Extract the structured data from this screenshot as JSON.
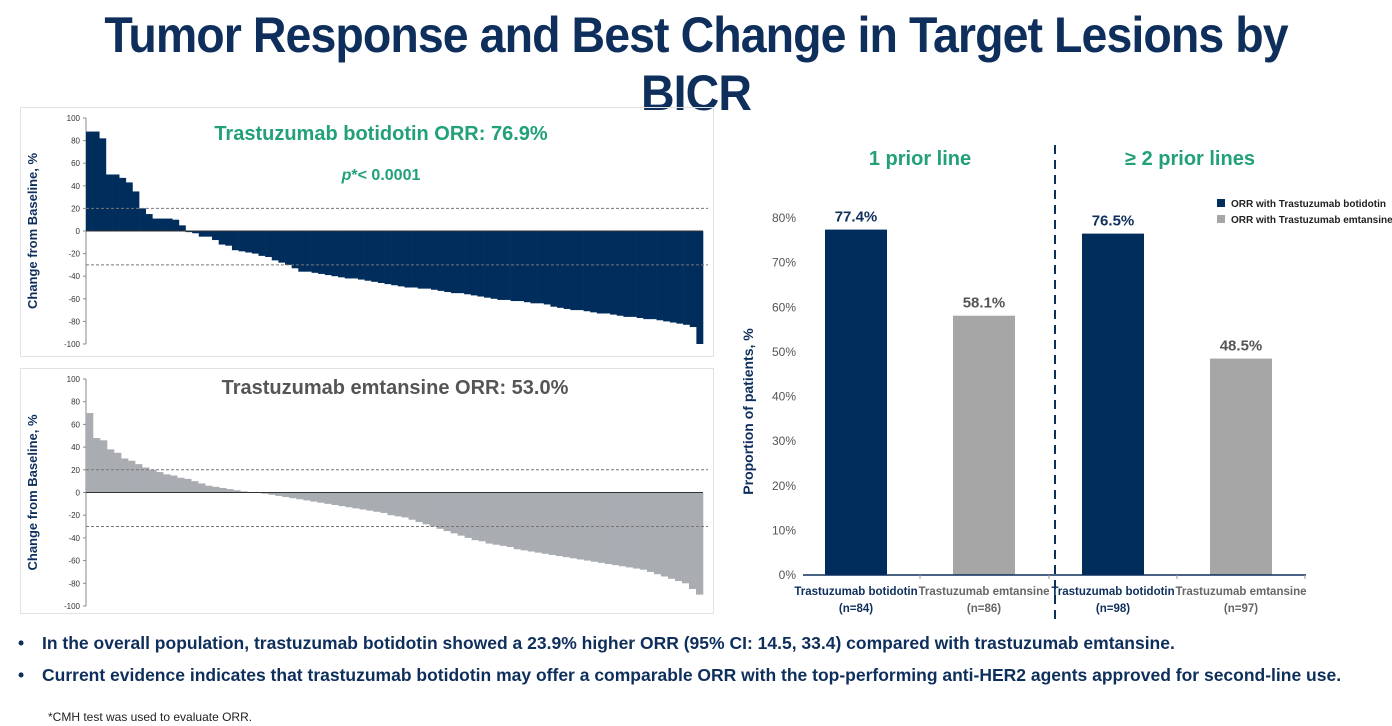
{
  "title": "Tumor Response and Best Change in Target Lesions by BICR",
  "colors": {
    "navy": "#0e2f5c",
    "bar_navy": "#002d5c",
    "gray": "#a6a6a6",
    "green": "#21a07a"
  },
  "chart_data": [
    {
      "type": "bar",
      "subtype": "waterfall",
      "title": "Trastuzumab botidotin ORR: 76.9%",
      "subtitle_p": "p",
      "subtitle_rest": "*< 0.0001",
      "ylabel": "Change from Baseline, %",
      "ylim": [
        -100,
        100
      ],
      "yticks": [
        "100",
        "80",
        "60",
        "40",
        "20",
        "0",
        "-20",
        "-40",
        "-60",
        "-80",
        "-100"
      ],
      "reference_lines": [
        20,
        -30
      ],
      "color": "#002d5c",
      "values": [
        88,
        88,
        82,
        50,
        50,
        47,
        43,
        35,
        20,
        15,
        11,
        11,
        11,
        10,
        5,
        -1,
        -2,
        -5,
        -5,
        -8,
        -12,
        -13,
        -17,
        -18,
        -19,
        -20,
        -22,
        -23,
        -26,
        -28,
        -30,
        -33,
        -36,
        -36,
        -37,
        -38,
        -39,
        -40,
        -41,
        -42,
        -42,
        -43,
        -44,
        -45,
        -46,
        -47,
        -48,
        -49,
        -50,
        -50,
        -51,
        -51,
        -52,
        -53,
        -54,
        -55,
        -55,
        -56,
        -57,
        -58,
        -59,
        -60,
        -61,
        -61,
        -62,
        -62,
        -63,
        -64,
        -64,
        -65,
        -67,
        -68,
        -69,
        -70,
        -70,
        -71,
        -72,
        -73,
        -73,
        -74,
        -75,
        -76,
        -76,
        -77,
        -78,
        -78,
        -79,
        -80,
        -81,
        -82,
        -83,
        -85,
        -100
      ]
    },
    {
      "type": "bar",
      "subtype": "waterfall",
      "title": "Trastuzumab emtansine ORR: 53.0%",
      "ylabel": "Change from Baseline, %",
      "ylim": [
        -100,
        100
      ],
      "yticks": [
        "100",
        "80",
        "60",
        "40",
        "20",
        "0",
        "-20",
        "-40",
        "-60",
        "-80",
        "-100"
      ],
      "reference_lines": [
        20,
        -30
      ],
      "color": "#a9adb2",
      "values": [
        70,
        48,
        46,
        38,
        35,
        30,
        28,
        25,
        22,
        20,
        18,
        16,
        15,
        13,
        12,
        10,
        8,
        6,
        5,
        4,
        3,
        2,
        1,
        0,
        0,
        -1,
        -2,
        -3,
        -4,
        -5,
        -6,
        -7,
        -8,
        -9,
        -10,
        -11,
        -12,
        -13,
        -14,
        -15,
        -16,
        -17,
        -18,
        -20,
        -21,
        -22,
        -24,
        -26,
        -28,
        -30,
        -32,
        -34,
        -36,
        -38,
        -40,
        -42,
        -43,
        -45,
        -46,
        -47,
        -48,
        -50,
        -51,
        -52,
        -53,
        -54,
        -55,
        -56,
        -57,
        -58,
        -59,
        -60,
        -61,
        -62,
        -63,
        -64,
        -65,
        -66,
        -67,
        -68,
        -70,
        -72,
        -74,
        -76,
        -78,
        -80,
        -85,
        -90
      ]
    },
    {
      "type": "bar",
      "ylabel": "Proportion of patients, %",
      "ylim": [
        0,
        80
      ],
      "yticks": [
        "0%",
        "10%",
        "20%",
        "30%",
        "40%",
        "50%",
        "60%",
        "70%",
        "80%"
      ],
      "groups": [
        "1 prior line",
        "≥ 2 prior lines"
      ],
      "legend": [
        "ORR with Trastuzumab botidotin",
        "ORR with Trastuzumab emtansine"
      ],
      "legend_position": "top-right",
      "bars": [
        {
          "name": "Trastuzumab botidotin",
          "n": "(n=84)",
          "value": 77.4,
          "label": "77.4%",
          "series": 0
        },
        {
          "name": "Trastuzumab emtansine",
          "n": "(n=86)",
          "value": 58.1,
          "label": "58.1%",
          "series": 1
        },
        {
          "name": "Trastuzumab botidotin",
          "n": "(n=98)",
          "value": 76.5,
          "label": "76.5%",
          "series": 0
        },
        {
          "name": "Trastuzumab emtansine",
          "n": "(n=97)",
          "value": 48.5,
          "label": "48.5%",
          "series": 1
        }
      ]
    }
  ],
  "bullets": [
    "In the overall population, trastuzumab botidotin showed a 23.9% higher ORR (95% CI: 14.5, 33.4) compared with trastuzumab emtansine.",
    "Current evidence indicates that trastuzumab botidotin may offer a comparable ORR with the top-performing anti-HER2 agents approved for second-line use."
  ],
  "bullet_char": "•",
  "footnote": "*CMH test was used to evaluate ORR."
}
